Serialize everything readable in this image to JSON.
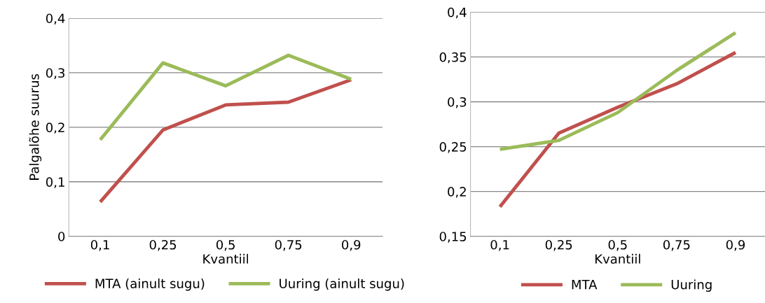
{
  "chart_data": [
    {
      "type": "line",
      "categories": [
        "0,1",
        "0,25",
        "0,5",
        "0,75",
        "0,9"
      ],
      "xlabel": "Kvantiil",
      "ylabel": "Palgalõhe suurus",
      "series": [
        {
          "name": "MTA (ainult sugu)",
          "color": "#c0504d",
          "values": [
            0.063,
            0.195,
            0.241,
            0.246,
            0.287
          ]
        },
        {
          "name": "Uuring (ainult sugu)",
          "color": "#9bbb59",
          "values": [
            0.177,
            0.318,
            0.276,
            0.332,
            0.288
          ]
        }
      ],
      "ylim": [
        0,
        0.4
      ],
      "yticks": [
        {
          "value": 0,
          "label": "0"
        },
        {
          "value": 0.1,
          "label": "0,1"
        },
        {
          "value": 0.2,
          "label": "0,2"
        },
        {
          "value": 0.3,
          "label": "0,3"
        },
        {
          "value": 0.4,
          "label": "0,4"
        }
      ],
      "grid": "y",
      "legend": "bottom",
      "marker": "none",
      "line_style": "solid"
    },
    {
      "type": "line",
      "categories": [
        "0,1",
        "0,25",
        "0,5",
        "0,75",
        "0,9"
      ],
      "xlabel": "Kvantiil",
      "series": [
        {
          "name": "MTA",
          "color": "#c0504d",
          "values": [
            0.183,
            0.265,
            0.294,
            0.32,
            0.355
          ]
        },
        {
          "name": "Uuring",
          "color": "#9bbb59",
          "values": [
            0.247,
            0.257,
            0.288,
            0.335,
            0.377
          ]
        }
      ],
      "ylim": [
        0.15,
        0.4
      ],
      "yticks": [
        {
          "value": 0.15,
          "label": "0,15"
        },
        {
          "value": 0.2,
          "label": "0,2"
        },
        {
          "value": 0.25,
          "label": "0,25"
        },
        {
          "value": 0.3,
          "label": "0,3"
        },
        {
          "value": 0.35,
          "label": "0,35"
        },
        {
          "value": 0.4,
          "label": "0,4"
        }
      ],
      "grid": "y",
      "legend": "bottom",
      "marker": "none",
      "line_style": "solid"
    }
  ]
}
